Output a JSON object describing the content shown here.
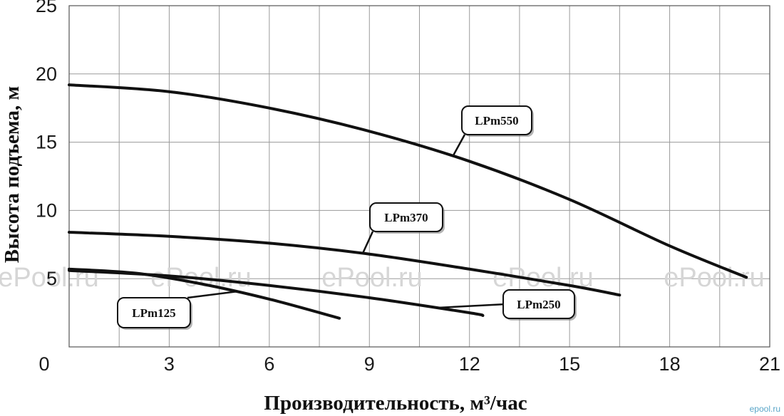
{
  "chart_data": {
    "type": "line",
    "xlabel": "Производительность, м³/час",
    "ylabel": "Высота подъема, м",
    "xlim": [
      0,
      21
    ],
    "ylim": [
      0,
      25
    ],
    "x_ticks": [
      "0",
      "3",
      "6",
      "9",
      "12",
      "15",
      "18",
      "21"
    ],
    "y_ticks": [
      "5",
      "10",
      "15",
      "20",
      "25"
    ],
    "grid": true,
    "series": [
      {
        "name": "LPm550",
        "x": [
          0,
          3,
          6,
          9,
          12,
          15,
          18,
          20.3
        ],
        "y": [
          19.2,
          18.7,
          17.5,
          15.8,
          13.6,
          10.8,
          7.4,
          5.1
        ]
      },
      {
        "name": "LPm370",
        "x": [
          0,
          3,
          6,
          9,
          12,
          15,
          16.5
        ],
        "y": [
          8.4,
          8.1,
          7.6,
          6.8,
          5.7,
          4.5,
          3.8
        ]
      },
      {
        "name": "LPm250",
        "x": [
          0,
          3,
          6,
          9,
          12,
          12.4
        ],
        "y": [
          5.6,
          5.2,
          4.5,
          3.6,
          2.5,
          2.3
        ]
      },
      {
        "name": "LPm125",
        "x": [
          0,
          2,
          4,
          6,
          8.1
        ],
        "y": [
          5.7,
          5.4,
          4.6,
          3.5,
          2.1
        ]
      }
    ]
  },
  "watermarks": [
    "ePool.ru",
    "ePool.ru",
    "ePool.ru",
    "ePool.ru",
    "ePool.ru"
  ],
  "logo_text": "epool.ru"
}
